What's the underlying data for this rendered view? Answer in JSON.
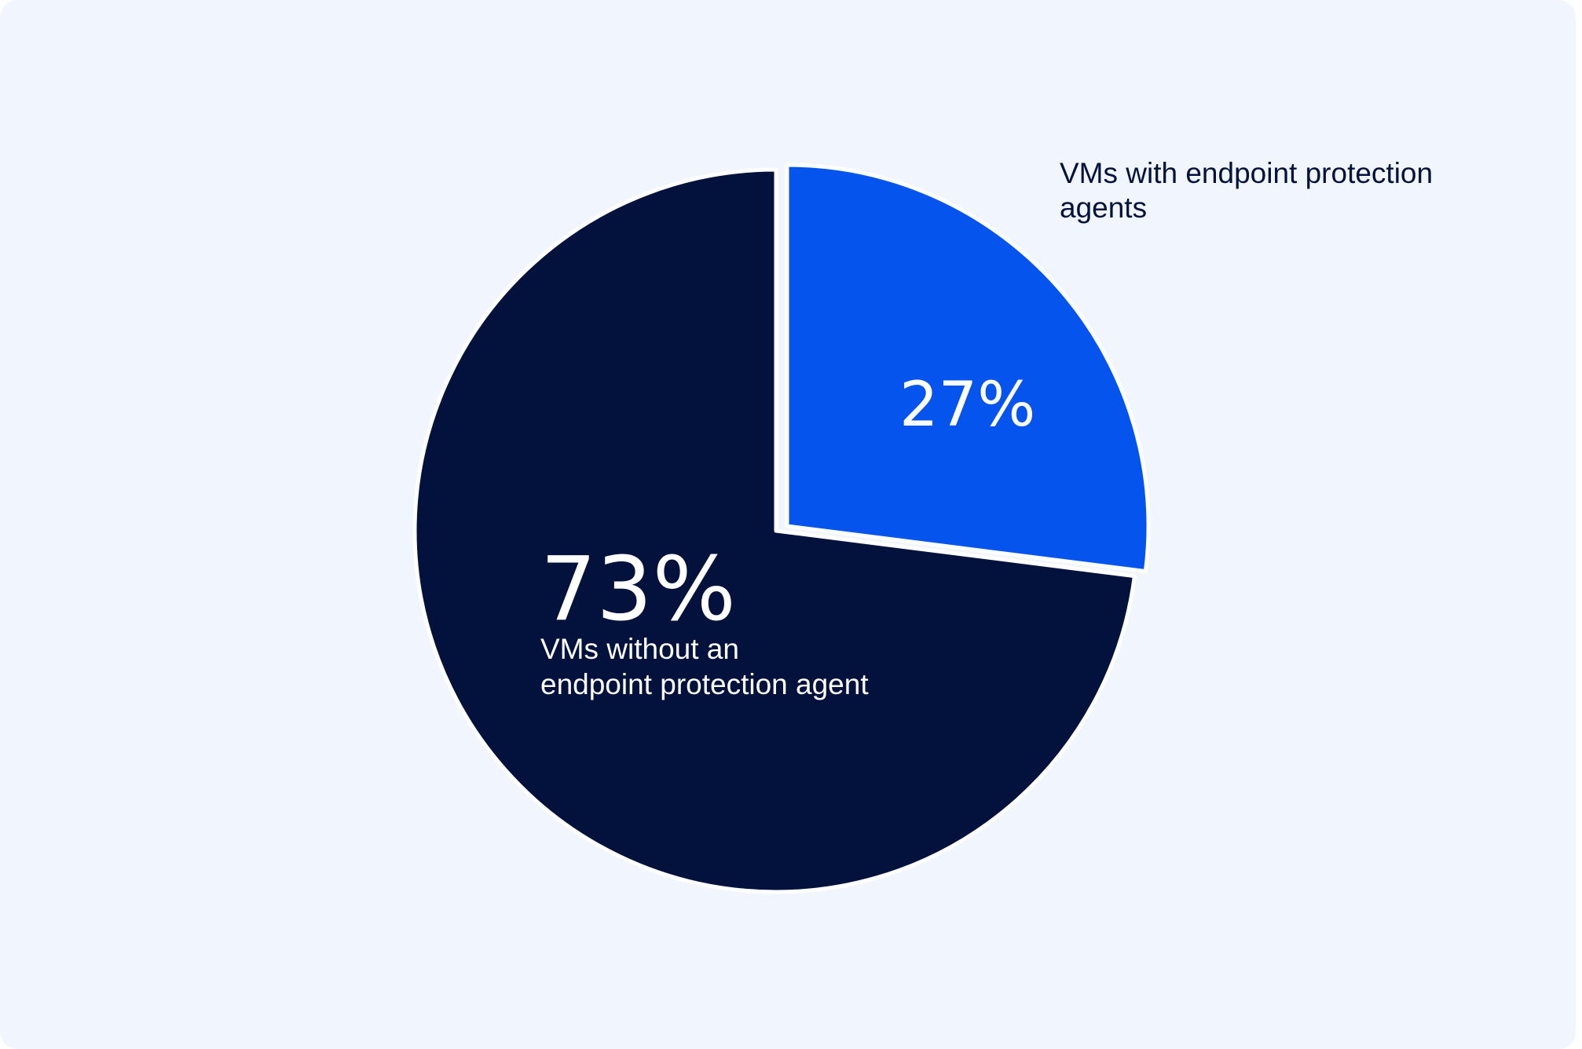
{
  "chart_data": {
    "type": "pie",
    "slices": [
      {
        "label": "VMs with endpoint protection agents",
        "label_lines": [
          "VMs with endpoint protection",
          "agents"
        ],
        "value": 27,
        "value_label": "27%",
        "color": "#0554ee"
      },
      {
        "label": "VMs without an endpoint protection agent",
        "label_lines": [
          "VMs without an",
          "endpoint protection agent"
        ],
        "value": 73,
        "value_label": "73%",
        "color": "#02123d"
      }
    ],
    "background_color": "#f1f6fe"
  }
}
